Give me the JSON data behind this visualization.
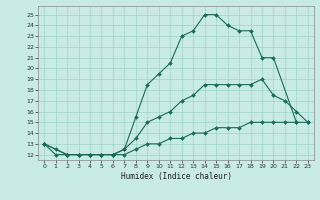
{
  "title": "",
  "xlabel": "Humidex (Indice chaleur)",
  "xlim": [
    -0.5,
    23.5
  ],
  "ylim": [
    11.5,
    25.8
  ],
  "xticks": [
    0,
    1,
    2,
    3,
    4,
    5,
    6,
    7,
    8,
    9,
    10,
    11,
    12,
    13,
    14,
    15,
    16,
    17,
    18,
    19,
    20,
    21,
    22,
    23
  ],
  "yticks": [
    12,
    13,
    14,
    15,
    16,
    17,
    18,
    19,
    20,
    21,
    22,
    23,
    24,
    25
  ],
  "background_color": "#c8ebe5",
  "grid_color": "#a0d4cc",
  "line_color": "#1a6b5a",
  "line1_x": [
    0,
    1,
    2,
    3,
    4,
    5,
    6,
    7,
    8,
    9,
    10,
    11,
    12,
    13,
    14,
    15,
    16,
    17,
    18,
    19,
    20,
    22
  ],
  "line1_y": [
    13,
    12,
    12,
    12,
    12,
    12,
    12,
    12.5,
    15.5,
    18.5,
    19.5,
    20.5,
    23,
    23.5,
    25,
    25,
    24,
    23.5,
    23.5,
    21,
    21,
    15
  ],
  "line2_x": [
    0,
    2,
    3,
    4,
    5,
    6,
    7,
    8,
    9,
    10,
    11,
    12,
    13,
    14,
    15,
    16,
    17,
    18,
    19,
    20,
    21,
    22,
    23
  ],
  "line2_y": [
    13,
    12,
    12,
    12,
    12,
    12,
    12.5,
    13.5,
    15,
    15.5,
    16,
    17,
    17.5,
    18.5,
    18.5,
    18.5,
    18.5,
    18.5,
    19,
    17.5,
    17,
    16,
    15
  ],
  "line3_x": [
    0,
    1,
    2,
    3,
    4,
    5,
    6,
    7,
    8,
    9,
    10,
    11,
    12,
    13,
    14,
    15,
    16,
    17,
    18,
    19,
    20,
    21,
    22,
    23
  ],
  "line3_y": [
    13,
    12.5,
    12,
    12,
    12,
    12,
    12,
    12,
    12.5,
    13,
    13,
    13.5,
    13.5,
    14,
    14,
    14.5,
    14.5,
    14.5,
    15,
    15,
    15,
    15,
    15,
    15
  ]
}
